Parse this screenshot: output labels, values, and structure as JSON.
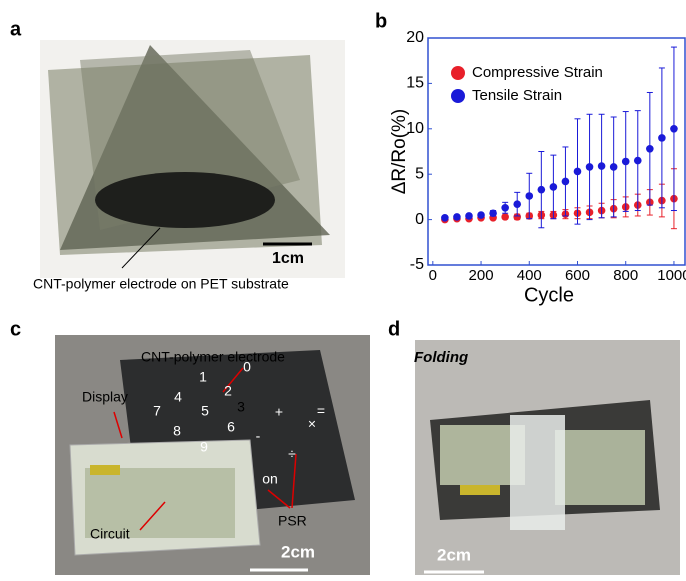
{
  "panels": {
    "a": {
      "label": "a",
      "scale_bar": "1cm",
      "annotation": "CNT-polymer electrode on PET substrate"
    },
    "b": {
      "label": "b"
    },
    "c": {
      "label": "c",
      "electrode": "CNT-polymer electrode",
      "display": "Display",
      "circuit": "Circuit",
      "psr": "PSR",
      "scale_bar": "2cm",
      "keys": [
        "0",
        "1",
        "2",
        "3",
        "4",
        "5",
        "6",
        "7",
        "8",
        "9",
        "+",
        "-",
        "×",
        "=",
        "÷",
        "on"
      ]
    },
    "d": {
      "label": "d",
      "caption": "Folding",
      "scale_bar": "2cm"
    }
  },
  "chart_data": {
    "type": "scatter",
    "ylabel": "ΔR/Ro(%)",
    "xlabel": "Cycle",
    "x": [
      50,
      100,
      150,
      200,
      250,
      300,
      350,
      400,
      450,
      500,
      550,
      600,
      650,
      700,
      750,
      800,
      850,
      900,
      950,
      1000
    ],
    "series": [
      {
        "name": "Compressive Strain",
        "color": "#e8202a",
        "values": [
          0.0,
          0.1,
          0.1,
          0.2,
          0.2,
          0.3,
          0.3,
          0.4,
          0.5,
          0.5,
          0.6,
          0.7,
          0.8,
          1.0,
          1.2,
          1.4,
          1.6,
          1.9,
          2.1,
          2.3
        ],
        "errors": [
          0.1,
          0.1,
          0.1,
          0.2,
          0.2,
          0.2,
          0.3,
          0.3,
          0.4,
          0.4,
          0.5,
          0.6,
          0.7,
          0.8,
          1.0,
          1.1,
          1.2,
          1.4,
          1.8,
          3.3
        ]
      },
      {
        "name": "Tensile Strain",
        "color": "#1a1ad8",
        "values": [
          0.2,
          0.3,
          0.4,
          0.5,
          0.7,
          1.3,
          1.7,
          2.6,
          3.3,
          3.6,
          4.2,
          5.3,
          5.8,
          5.9,
          5.8,
          6.4,
          6.5,
          7.8,
          9.0,
          10.0
        ],
        "errors": [
          0.1,
          0.1,
          0.2,
          0.2,
          0.3,
          0.6,
          1.3,
          2.5,
          4.2,
          3.5,
          3.8,
          5.8,
          5.8,
          5.7,
          5.5,
          5.5,
          5.5,
          6.2,
          7.7,
          9.0
        ]
      }
    ],
    "xlim": [
      -20,
      1050
    ],
    "ylim": [
      -5,
      20
    ],
    "xticks": [
      0,
      200,
      400,
      600,
      800,
      1000
    ],
    "yticks": [
      -5,
      0,
      5,
      10,
      15,
      20
    ],
    "legend": "upper left"
  }
}
